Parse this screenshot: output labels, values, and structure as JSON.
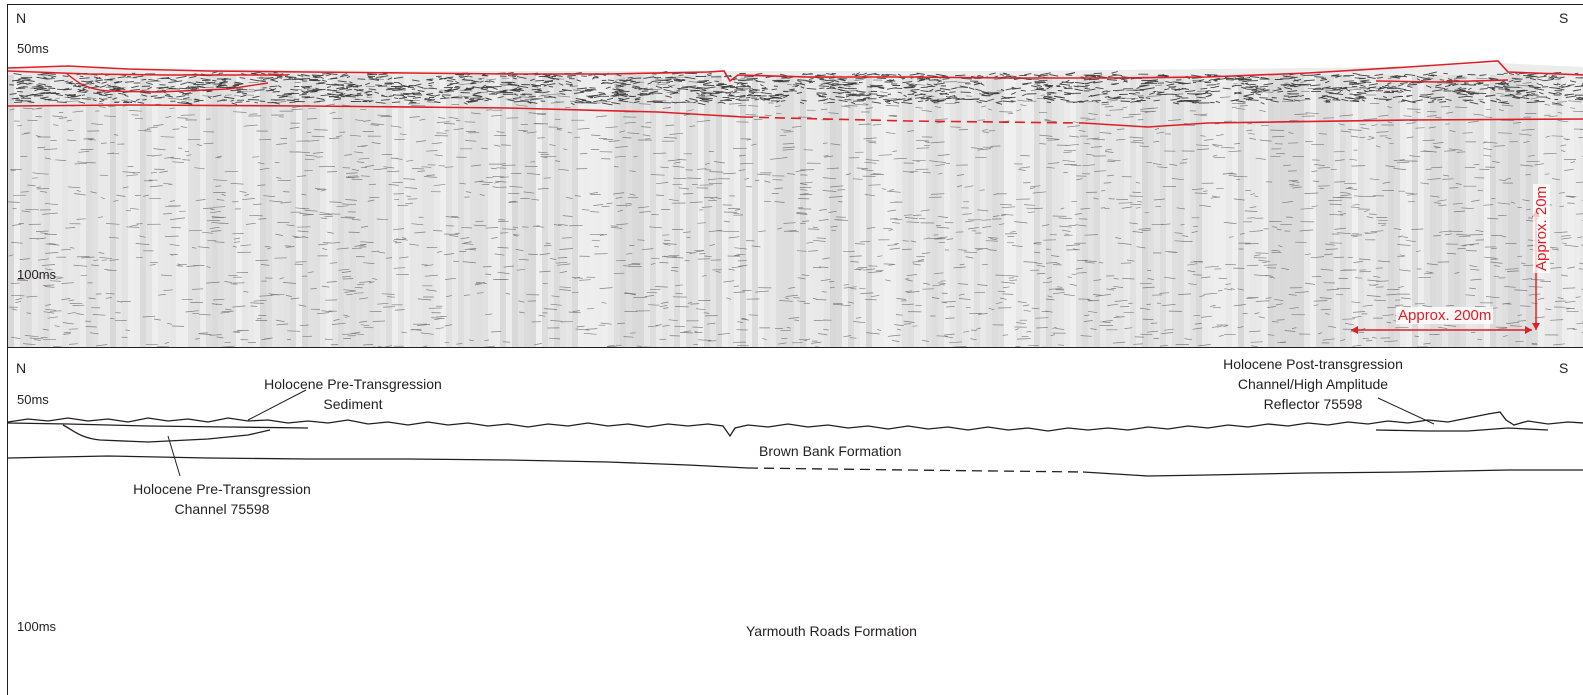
{
  "top_panel": {
    "compass_left": "N",
    "compass_right": "S",
    "time_50": "50ms",
    "time_100": "100ms",
    "scale_horizontal": "Approx. 200m",
    "scale_vertical": "Approx. 20m",
    "colors": {
      "interpretation": "#e01e26",
      "seismic_dark": "#1a1a1a",
      "seismic_bg": "#ececec"
    }
  },
  "bottom_panel": {
    "compass_left": "N",
    "compass_right": "S",
    "time_50": "50ms",
    "time_100": "100ms",
    "labels": {
      "pre_transgression_sediment": [
        "Holocene Pre-Transgression",
        "Sediment"
      ],
      "pre_transgression_channel": [
        "Holocene Pre-Transgression",
        "Channel 75598"
      ],
      "post_transgression": [
        "Holocene Post-transgression",
        "Channel/High Amplitude",
        "Reflector 75598"
      ],
      "brown_bank": "Brown Bank Formation",
      "yarmouth_roads": "Yarmouth Roads Formation"
    }
  }
}
